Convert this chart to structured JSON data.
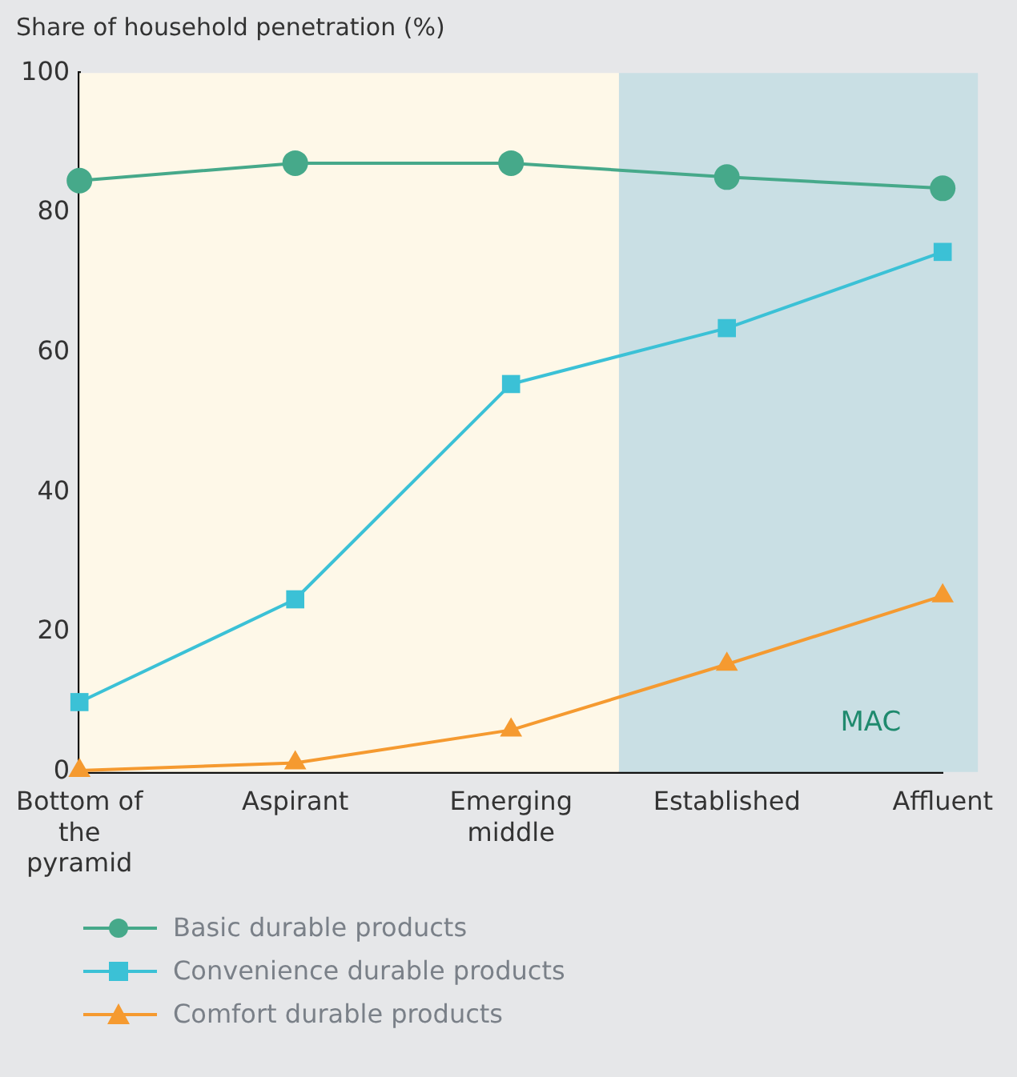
{
  "chart_data": {
    "type": "line",
    "ylabel": "Share of household penetration (%)",
    "categories": [
      "Bottom of the pyramid",
      "Aspirant",
      "Emerging middle",
      "Established",
      "Affluent"
    ],
    "series": [
      {
        "name": "Basic durable products",
        "color": "#46a98a",
        "marker": "circle",
        "values": [
          84.6,
          87.1,
          87.1,
          85.1,
          83.5
        ]
      },
      {
        "name": "Convenience durable products",
        "color": "#3bc1d6",
        "marker": "square",
        "values": [
          10,
          24.7,
          55.5,
          63.5,
          74.4
        ]
      },
      {
        "name": "Comfort durable products",
        "color": "#f59a30",
        "marker": "triangle",
        "values": [
          0.2,
          1.3,
          6,
          15.4,
          25.2
        ]
      }
    ],
    "ylim": [
      0,
      100
    ],
    "yticks": [
      0,
      20,
      40,
      60,
      80,
      100
    ],
    "grid": false,
    "legend": "bottom left",
    "line_style": "solid",
    "bands": [
      {
        "axis": "x",
        "from": "Bottom of the pyramid",
        "to": "Emerging middle",
        "color": "#fef8e8"
      },
      {
        "axis": "x",
        "from": "Established",
        "to": "Affluent",
        "label": "MAC",
        "color": "#c9dfe4"
      }
    ]
  }
}
